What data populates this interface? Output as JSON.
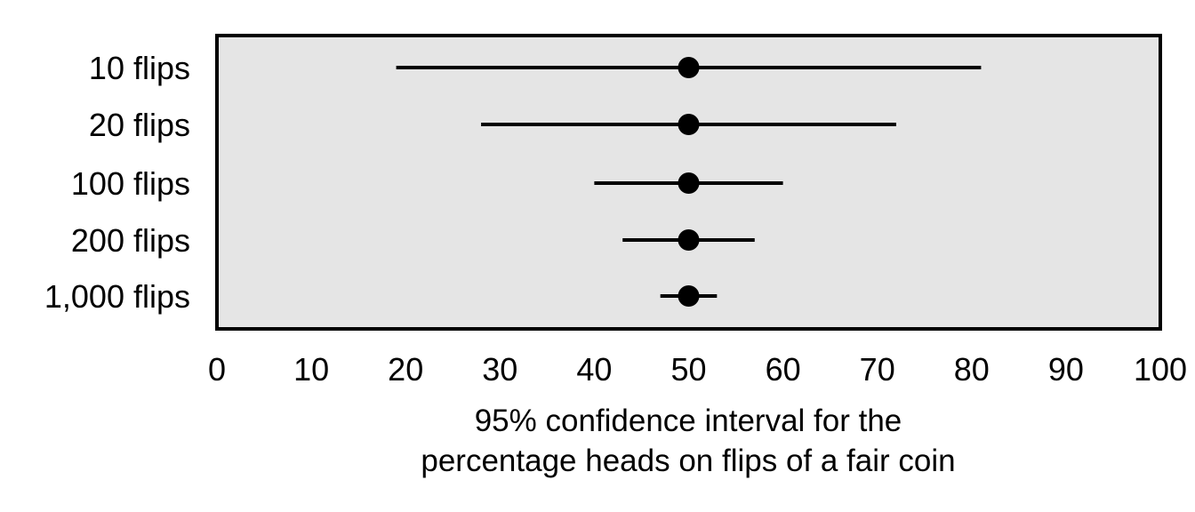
{
  "chart_data": {
    "type": "errorbar",
    "categories": [
      "10 flips",
      "20 flips",
      "100 flips",
      "200 flips",
      "1,000 flips"
    ],
    "series": [
      {
        "points": [
          {
            "category": "10 flips",
            "estimate": 50,
            "lower": 19,
            "upper": 81
          },
          {
            "category": "20 flips",
            "estimate": 50,
            "lower": 28,
            "upper": 72
          },
          {
            "category": "100 flips",
            "estimate": 50,
            "lower": 40,
            "upper": 60
          },
          {
            "category": "200 flips",
            "estimate": 50,
            "lower": 43,
            "upper": 57
          },
          {
            "category": "1,000 flips",
            "estimate": 50,
            "lower": 47,
            "upper": 53
          }
        ]
      }
    ],
    "xticks": [
      0,
      10,
      20,
      30,
      40,
      50,
      60,
      70,
      80,
      90,
      100
    ],
    "xtick_labels": [
      "0",
      "10",
      "20",
      "30",
      "40",
      "50",
      "60",
      "70",
      "80",
      "90",
      "100"
    ],
    "xlim": [
      0,
      100
    ],
    "xlabel_lines": [
      "95% confidence interval for the",
      "percentage heads on flips of a fair coin"
    ],
    "grid": false,
    "colors": {
      "panel_background": "#e5e5e5",
      "marks": "#000000"
    }
  }
}
